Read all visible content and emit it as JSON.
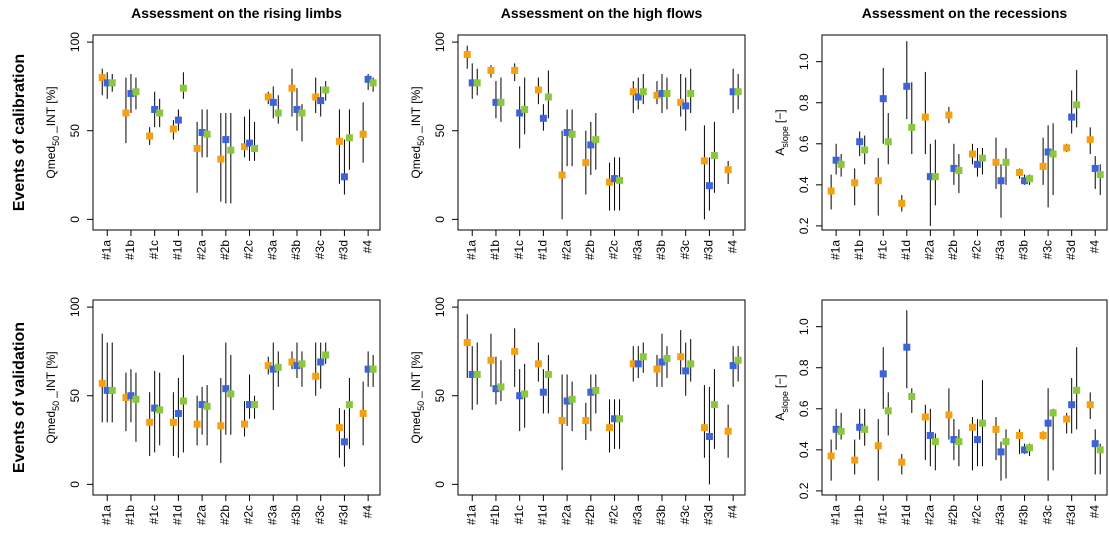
{
  "chart_data": [
    {
      "type": "errorbar",
      "title": "Assessment on the rising limbs",
      "row_label": "Events of calibration",
      "ylabel": {
        "text": "Qmed",
        "sub": "50",
        "after": "_INT [%]"
      },
      "categories": [
        "#1a",
        "#1b",
        "#1c",
        "#1d",
        "#2a",
        "#2b",
        "#2c",
        "#3a",
        "#3b",
        "#3c",
        "#3d",
        "#4"
      ],
      "ylim": [
        -6,
        104
      ],
      "yticks": [
        0,
        50,
        100
      ],
      "series": [
        {
          "color": "#f5a00f",
          "values": [
            80,
            60,
            47,
            51,
            40,
            34,
            41,
            69,
            74,
            69,
            44,
            48
          ],
          "lows": [
            70,
            43,
            42,
            45,
            15,
            10,
            35,
            65,
            58,
            60,
            20,
            32
          ],
          "highs": [
            85,
            80,
            52,
            56,
            55,
            60,
            58,
            72,
            85,
            80,
            62,
            66
          ]
        },
        {
          "color": "#3d63d6",
          "values": [
            77,
            71,
            62,
            56,
            49,
            45,
            43,
            66,
            62,
            67,
            24,
            79
          ],
          "lows": [
            68,
            60,
            52,
            50,
            35,
            9,
            33,
            57,
            50,
            58,
            14,
            73
          ],
          "highs": [
            83,
            82,
            72,
            62,
            62,
            60,
            62,
            75,
            74,
            75,
            45,
            82
          ]
        },
        {
          "color": "#8cc63f",
          "values": [
            77,
            72,
            60,
            74,
            48,
            39,
            40,
            60,
            60,
            73,
            46,
            77
          ],
          "lows": [
            72,
            62,
            52,
            68,
            35,
            9,
            33,
            54,
            44,
            67,
            28,
            72
          ],
          "highs": [
            82,
            80,
            68,
            83,
            62,
            60,
            55,
            70,
            65,
            78,
            62,
            80
          ]
        }
      ]
    },
    {
      "type": "errorbar",
      "title": "Assessment on the high flows",
      "ylabel": {
        "text": "Qmed",
        "sub": "50",
        "after": "_INT [%]"
      },
      "categories": [
        "#1a",
        "#1b",
        "#1c",
        "#1d",
        "#2a",
        "#2b",
        "#2c",
        "#3a",
        "#3b",
        "#3c",
        "#3d",
        "#4"
      ],
      "ylim": [
        -6,
        104
      ],
      "yticks": [
        0,
        50,
        100
      ],
      "series": [
        {
          "color": "#f5a00f",
          "values": [
            93,
            84,
            84,
            73,
            25,
            32,
            21,
            72,
            70,
            66,
            33,
            28
          ],
          "lows": [
            85,
            80,
            78,
            65,
            0,
            14,
            5,
            60,
            65,
            58,
            0,
            20
          ],
          "highs": [
            98,
            87,
            88,
            80,
            50,
            50,
            32,
            78,
            78,
            82,
            53,
            33
          ]
        },
        {
          "color": "#3d63d6",
          "values": [
            77,
            66,
            60,
            57,
            49,
            42,
            23,
            69,
            71,
            64,
            19,
            72
          ],
          "lows": [
            68,
            57,
            40,
            50,
            30,
            25,
            5,
            62,
            60,
            50,
            5,
            60
          ],
          "highs": [
            88,
            78,
            75,
            65,
            62,
            55,
            35,
            80,
            82,
            80,
            35,
            85
          ]
        },
        {
          "color": "#8cc63f",
          "values": [
            77,
            66,
            62,
            69,
            48,
            45,
            22,
            72,
            71,
            71,
            36,
            72
          ],
          "lows": [
            70,
            55,
            48,
            57,
            30,
            28,
            5,
            65,
            62,
            60,
            15,
            62
          ],
          "highs": [
            85,
            80,
            80,
            84,
            62,
            60,
            35,
            82,
            80,
            85,
            55,
            82
          ]
        }
      ]
    },
    {
      "type": "errorbar",
      "title": "Assessment on the recessions",
      "ylabel": {
        "text": "A",
        "sub": "slope",
        "after": "[−]"
      },
      "categories": [
        "#1a",
        "#1b",
        "#1c",
        "#1d",
        "#2a",
        "#2b",
        "#2c",
        "#3a",
        "#3b",
        "#3c",
        "#3d",
        "#4"
      ],
      "ylim": [
        0.18,
        1.13
      ],
      "yticks": [
        0.2,
        0.4,
        0.6,
        0.8,
        {
          "value": 1,
          "label": "1.0"
        }
      ],
      "series": [
        {
          "color": "#f5a00f",
          "values": [
            0.37,
            0.41,
            0.42,
            0.31,
            0.73,
            0.74,
            0.55,
            0.51,
            0.46,
            0.49,
            0.58,
            0.62
          ],
          "lows": [
            0.28,
            0.3,
            0.25,
            0.27,
            0.55,
            0.7,
            0.5,
            0.38,
            0.43,
            0.4,
            0.56,
            0.55
          ],
          "highs": [
            0.45,
            0.48,
            0.53,
            0.35,
            0.95,
            0.78,
            0.6,
            0.63,
            0.48,
            0.63,
            0.6,
            0.68
          ]
        },
        {
          "color": "#3d63d6",
          "values": [
            0.52,
            0.61,
            0.82,
            0.88,
            0.44,
            0.48,
            0.5,
            0.42,
            0.42,
            0.56,
            0.73,
            0.48
          ],
          "lows": [
            0.45,
            0.54,
            0.6,
            0.72,
            0.2,
            0.4,
            0.44,
            0.24,
            0.4,
            0.29,
            0.65,
            0.38
          ],
          "highs": [
            0.6,
            0.66,
            0.97,
            1.1,
            0.6,
            0.6,
            0.58,
            0.5,
            0.45,
            0.69,
            0.86,
            0.54
          ]
        },
        {
          "color": "#8cc63f",
          "values": [
            0.5,
            0.57,
            0.61,
            0.68,
            0.44,
            0.47,
            0.53,
            0.51,
            0.43,
            0.55,
            0.79,
            0.45
          ],
          "lows": [
            0.44,
            0.5,
            0.5,
            0.55,
            0.3,
            0.36,
            0.45,
            0.4,
            0.4,
            0.35,
            0.68,
            0.35
          ],
          "highs": [
            0.55,
            0.64,
            0.75,
            0.9,
            0.62,
            0.55,
            0.58,
            0.58,
            0.45,
            0.7,
            0.96,
            0.5
          ]
        }
      ]
    },
    {
      "type": "errorbar",
      "row_label": "Events of validation",
      "ylabel": {
        "text": "Qmed",
        "sub": "50",
        "after": "_INT [%]"
      },
      "categories": [
        "#1a",
        "#1b",
        "#1c",
        "#1d",
        "#2a",
        "#2b",
        "#2c",
        "#3a",
        "#3b",
        "#3c",
        "#3d",
        "#4"
      ],
      "ylim": [
        -6,
        104
      ],
      "yticks": [
        0,
        50,
        100
      ],
      "series": [
        {
          "color": "#f5a00f",
          "values": [
            57,
            49,
            35,
            35,
            34,
            33,
            34,
            67,
            69,
            61,
            32,
            40
          ],
          "lows": [
            35,
            30,
            16,
            16,
            22,
            12,
            27,
            62,
            65,
            50,
            15,
            22
          ],
          "highs": [
            85,
            63,
            52,
            52,
            50,
            60,
            47,
            72,
            75,
            80,
            43,
            58
          ]
        },
        {
          "color": "#3d63d6",
          "values": [
            53,
            50,
            43,
            40,
            45,
            54,
            45,
            65,
            67,
            69,
            24,
            65
          ],
          "lows": [
            35,
            35,
            18,
            15,
            28,
            28,
            37,
            42,
            60,
            54,
            10,
            55
          ],
          "highs": [
            80,
            65,
            64,
            60,
            55,
            80,
            62,
            80,
            80,
            80,
            42,
            75
          ]
        },
        {
          "color": "#8cc63f",
          "values": [
            53,
            48,
            42,
            47,
            44,
            51,
            45,
            66,
            68,
            73,
            45,
            65
          ],
          "lows": [
            35,
            24,
            22,
            18,
            22,
            28,
            37,
            55,
            55,
            68,
            20,
            55
          ],
          "highs": [
            80,
            63,
            63,
            73,
            56,
            73,
            50,
            75,
            75,
            80,
            60,
            73
          ]
        }
      ]
    },
    {
      "type": "errorbar",
      "ylabel": {
        "text": "Qmed",
        "sub": "50",
        "after": "_INT [%]"
      },
      "categories": [
        "#1a",
        "#1b",
        "#1c",
        "#1d",
        "#2a",
        "#2b",
        "#2c",
        "#3a",
        "#3b",
        "#3c",
        "#3d",
        "#4"
      ],
      "ylim": [
        -6,
        104
      ],
      "yticks": [
        0,
        50,
        100
      ],
      "series": [
        {
          "color": "#f5a00f",
          "values": [
            80,
            70,
            75,
            68,
            36,
            36,
            32,
            68,
            65,
            72,
            32,
            30
          ],
          "lows": [
            60,
            55,
            55,
            58,
            8,
            25,
            18,
            58,
            55,
            62,
            15,
            15
          ],
          "highs": [
            96,
            85,
            88,
            80,
            62,
            46,
            48,
            78,
            73,
            87,
            56,
            45
          ]
        },
        {
          "color": "#3d63d6",
          "values": [
            62,
            54,
            50,
            52,
            47,
            52,
            37,
            68,
            69,
            64,
            27,
            67
          ],
          "lows": [
            42,
            45,
            30,
            40,
            33,
            30,
            20,
            60,
            55,
            50,
            0,
            55
          ],
          "highs": [
            78,
            72,
            65,
            65,
            62,
            62,
            48,
            78,
            85,
            80,
            55,
            78
          ]
        },
        {
          "color": "#8cc63f",
          "values": [
            62,
            55,
            51,
            62,
            48,
            53,
            37,
            72,
            71,
            68,
            45,
            70
          ],
          "lows": [
            45,
            47,
            32,
            40,
            30,
            40,
            20,
            63,
            60,
            58,
            20,
            58
          ],
          "highs": [
            80,
            70,
            68,
            73,
            58,
            62,
            48,
            80,
            78,
            82,
            65,
            78
          ]
        }
      ]
    },
    {
      "type": "errorbar",
      "ylabel": {
        "text": "A",
        "sub": "slope",
        "after": "[−]"
      },
      "categories": [
        "#1a",
        "#1b",
        "#1c",
        "#1d",
        "#2a",
        "#2b",
        "#2c",
        "#3a",
        "#3b",
        "#3c",
        "#3d",
        "#4"
      ],
      "ylim": [
        0.18,
        1.13
      ],
      "yticks": [
        0.2,
        0.4,
        0.6,
        0.8,
        {
          "value": 1,
          "label": "1.0"
        }
      ],
      "series": [
        {
          "color": "#f5a00f",
          "values": [
            0.37,
            0.35,
            0.42,
            0.34,
            0.56,
            0.57,
            0.51,
            0.5,
            0.47,
            0.47,
            0.55,
            0.62
          ],
          "lows": [
            0.25,
            0.28,
            0.25,
            0.28,
            0.35,
            0.45,
            0.3,
            0.35,
            0.38,
            0.45,
            0.48,
            0.55
          ],
          "highs": [
            0.45,
            0.45,
            0.55,
            0.38,
            0.62,
            0.7,
            0.56,
            0.56,
            0.5,
            0.49,
            0.58,
            0.68
          ]
        },
        {
          "color": "#3d63d6",
          "values": [
            0.5,
            0.51,
            0.77,
            0.9,
            0.47,
            0.45,
            0.45,
            0.39,
            0.4,
            0.53,
            0.62,
            0.43
          ],
          "lows": [
            0.4,
            0.45,
            0.6,
            0.7,
            0.32,
            0.35,
            0.32,
            0.25,
            0.38,
            0.25,
            0.48,
            0.28
          ],
          "highs": [
            0.6,
            0.6,
            0.9,
            1.08,
            0.6,
            0.55,
            0.55,
            0.44,
            0.43,
            0.7,
            0.75,
            0.5
          ]
        },
        {
          "color": "#8cc63f",
          "values": [
            0.49,
            0.5,
            0.59,
            0.66,
            0.44,
            0.44,
            0.53,
            0.44,
            0.41,
            0.58,
            0.69,
            0.4
          ],
          "lows": [
            0.45,
            0.42,
            0.47,
            0.58,
            0.3,
            0.32,
            0.32,
            0.26,
            0.37,
            0.3,
            0.5,
            0.28
          ],
          "highs": [
            0.58,
            0.6,
            0.68,
            0.7,
            0.48,
            0.5,
            0.74,
            0.5,
            0.43,
            0.6,
            0.9,
            0.43
          ]
        }
      ]
    }
  ]
}
